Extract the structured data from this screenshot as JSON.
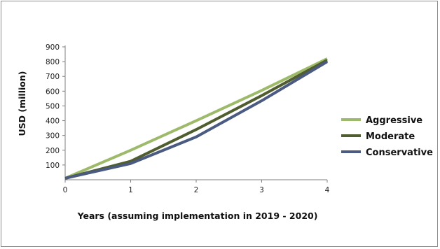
{
  "chart_data": {
    "type": "line",
    "title": "",
    "xlabel": "Years (assuming implementation in 2019 - 2020)",
    "ylabel": "USD (million)",
    "x": [
      0,
      1,
      2,
      3,
      4
    ],
    "xlim": [
      0,
      4
    ],
    "ylim": [
      0,
      900
    ],
    "yticks": [
      100,
      200,
      300,
      400,
      500,
      600,
      700,
      800,
      900
    ],
    "xticks": [
      0,
      1,
      2,
      3,
      4
    ],
    "grid": false,
    "legend": "right",
    "series": [
      {
        "name": "Aggressive",
        "values": [
          10,
          200,
          400,
          605,
          820
        ],
        "color": "#9dba6a"
      },
      {
        "name": "Moderate",
        "values": [
          10,
          125,
          340,
          570,
          810
        ],
        "color": "#4f5d2f"
      },
      {
        "name": "Conservative",
        "values": [
          10,
          110,
          290,
          535,
          800
        ],
        "color": "#4a5a80"
      }
    ]
  }
}
